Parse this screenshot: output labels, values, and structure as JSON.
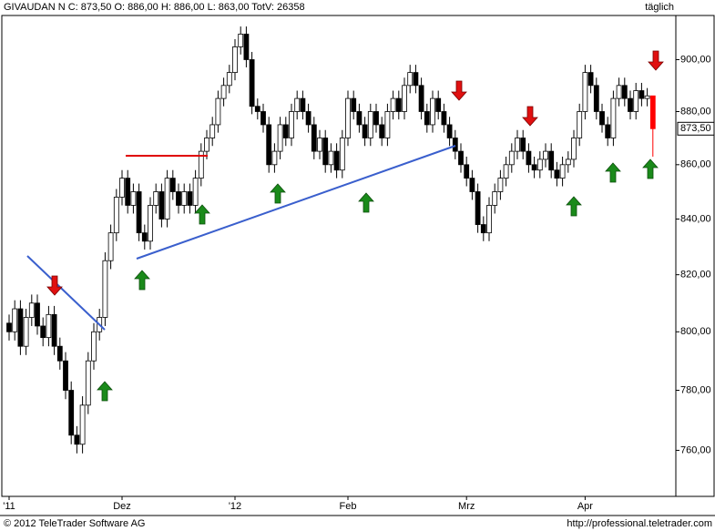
{
  "chart_data": {
    "type": "candlestick",
    "title": "GIVAUDAN N C: 873,50 O: 886,00 H: 886,00 L: 863,00 TotV: 26358",
    "timeframe": "täglich",
    "footer_left": "© 2012 TeleTrader Software AG",
    "footer_right": "http://professional.teletrader.com",
    "log_scale": true,
    "ylim": [
      745,
      917
    ],
    "yticks": [
      {
        "value": 760,
        "label": "760,00"
      },
      {
        "value": 780,
        "label": "780,00"
      },
      {
        "value": 800,
        "label": "800,00"
      },
      {
        "value": 820,
        "label": "820,00"
      },
      {
        "value": 840,
        "label": "840,00"
      },
      {
        "value": 860,
        "label": "860,00"
      },
      {
        "value": 880,
        "label": "880,00"
      },
      {
        "value": 900,
        "label": "900,00"
      }
    ],
    "xticks": [
      {
        "value": 0,
        "label": "'11"
      },
      {
        "value": 20,
        "label": "Dez"
      },
      {
        "value": 40,
        "label": "'12"
      },
      {
        "value": 60,
        "label": "Feb"
      },
      {
        "value": 81,
        "label": "Mrz"
      },
      {
        "value": 102,
        "label": "Apr"
      }
    ],
    "current_price": {
      "value": 873.5,
      "label": "873,50"
    },
    "up_color": "#ffffff",
    "down_color": "#000000",
    "last_color": "#ff0000",
    "open": [
      803,
      800,
      808,
      795,
      805,
      810,
      802,
      798,
      806,
      795,
      790,
      780,
      765,
      762,
      775,
      790,
      800,
      805,
      825,
      835,
      848,
      855,
      845,
      850,
      835,
      832,
      845,
      850,
      840,
      855,
      850,
      845,
      850,
      845,
      855,
      865,
      870,
      875,
      885,
      890,
      895,
      905,
      910,
      900,
      882,
      880,
      875,
      860,
      865,
      875,
      870,
      880,
      885,
      880,
      875,
      865,
      870,
      860,
      865,
      858,
      870,
      885,
      880,
      875,
      870,
      880,
      875,
      870,
      880,
      885,
      880,
      890,
      895,
      890,
      880,
      875,
      885,
      880,
      875,
      870,
      865,
      860,
      855,
      850,
      838,
      835,
      845,
      850,
      855,
      860,
      865,
      870,
      865,
      860,
      858,
      862,
      865,
      858,
      855,
      860,
      862,
      870,
      880,
      895,
      890,
      880,
      875,
      870,
      885,
      890,
      885,
      880,
      888,
      885,
      886
    ],
    "high": [
      806,
      811,
      811,
      808,
      813,
      813,
      805,
      809,
      809,
      798,
      793,
      783,
      768,
      778,
      793,
      803,
      808,
      828,
      838,
      851,
      858,
      858,
      853,
      853,
      838,
      848,
      853,
      853,
      858,
      858,
      853,
      853,
      853,
      858,
      868,
      873,
      878,
      888,
      893,
      898,
      908,
      913,
      913,
      903,
      885,
      883,
      878,
      868,
      878,
      878,
      883,
      888,
      888,
      883,
      878,
      873,
      873,
      868,
      868,
      873,
      888,
      888,
      883,
      878,
      883,
      883,
      878,
      883,
      888,
      888,
      893,
      898,
      898,
      893,
      883,
      888,
      888,
      883,
      878,
      873,
      868,
      863,
      858,
      853,
      841,
      848,
      853,
      858,
      863,
      868,
      873,
      873,
      868,
      863,
      865,
      868,
      868,
      861,
      863,
      865,
      873,
      883,
      898,
      898,
      893,
      883,
      878,
      888,
      893,
      893,
      888,
      891,
      891,
      889,
      886
    ],
    "low": [
      797,
      797,
      792,
      792,
      802,
      799,
      795,
      795,
      792,
      787,
      777,
      762,
      759,
      759,
      772,
      787,
      797,
      802,
      822,
      832,
      845,
      842,
      842,
      832,
      829,
      829,
      842,
      837,
      837,
      847,
      842,
      842,
      842,
      842,
      852,
      862,
      867,
      872,
      882,
      887,
      892,
      902,
      897,
      879,
      877,
      872,
      857,
      857,
      862,
      867,
      867,
      877,
      877,
      872,
      862,
      862,
      857,
      857,
      855,
      855,
      867,
      877,
      872,
      867,
      867,
      872,
      867,
      867,
      877,
      877,
      877,
      887,
      887,
      877,
      872,
      872,
      877,
      872,
      867,
      862,
      857,
      852,
      847,
      835,
      832,
      832,
      842,
      847,
      852,
      857,
      862,
      862,
      857,
      855,
      855,
      859,
      855,
      852,
      852,
      857,
      859,
      867,
      877,
      887,
      877,
      872,
      867,
      867,
      882,
      882,
      877,
      877,
      882,
      882,
      863
    ],
    "close": [
      800,
      808,
      795,
      805,
      810,
      802,
      798,
      806,
      795,
      790,
      780,
      765,
      762,
      775,
      790,
      800,
      805,
      825,
      835,
      848,
      855,
      845,
      850,
      835,
      832,
      845,
      850,
      840,
      855,
      850,
      845,
      850,
      845,
      855,
      865,
      870,
      875,
      885,
      890,
      895,
      905,
      910,
      900,
      882,
      880,
      875,
      860,
      865,
      875,
      870,
      880,
      885,
      880,
      875,
      865,
      870,
      860,
      865,
      858,
      870,
      885,
      880,
      875,
      870,
      880,
      875,
      870,
      880,
      885,
      880,
      890,
      895,
      890,
      880,
      875,
      885,
      880,
      875,
      870,
      865,
      860,
      855,
      850,
      838,
      835,
      845,
      850,
      855,
      860,
      865,
      870,
      865,
      860,
      858,
      862,
      865,
      858,
      855,
      860,
      862,
      870,
      880,
      895,
      890,
      880,
      875,
      870,
      885,
      890,
      885,
      880,
      888,
      885,
      886,
      873.5
    ]
  }
}
